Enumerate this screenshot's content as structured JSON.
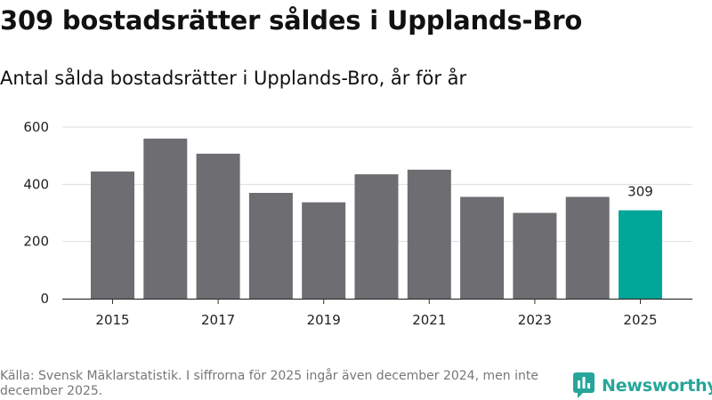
{
  "title": "309 bostadsrätter såldes i Upplands-Bro",
  "subtitle": "Antal sålda bostadsrätter i Upplands-Bro, år för år",
  "footer": "Källa: Svensk Mäklarstatistik. I siffrorna för 2025 ingår även december 2024, men inte december 2025.",
  "brand": {
    "name": "Newsworthy",
    "icon": "bar-chart-logo-icon"
  },
  "colors": {
    "bar": "#6e6d72",
    "highlight": "#00a698",
    "grid": "#dddddd",
    "axis": "#333333",
    "brand": "#26a69a"
  },
  "chart_data": {
    "type": "bar",
    "title": "Antal sålda bostadsrätter i Upplands-Bro, år för år",
    "xlabel": "",
    "ylabel": "",
    "categories": [
      "2015",
      "2016",
      "2017",
      "2018",
      "2019",
      "2020",
      "2021",
      "2022",
      "2023",
      "2024",
      "2025"
    ],
    "values": [
      445,
      560,
      507,
      370,
      337,
      435,
      451,
      356,
      300,
      356,
      309
    ],
    "x_tick_labels": [
      "2015",
      "2017",
      "2019",
      "2021",
      "2023",
      "2025"
    ],
    "y_ticks": [
      0,
      200,
      400,
      600
    ],
    "ylim": [
      0,
      600
    ],
    "grid": true,
    "highlight_category": "2025",
    "data_labels": [
      {
        "category": "2025",
        "text": "309"
      }
    ]
  }
}
